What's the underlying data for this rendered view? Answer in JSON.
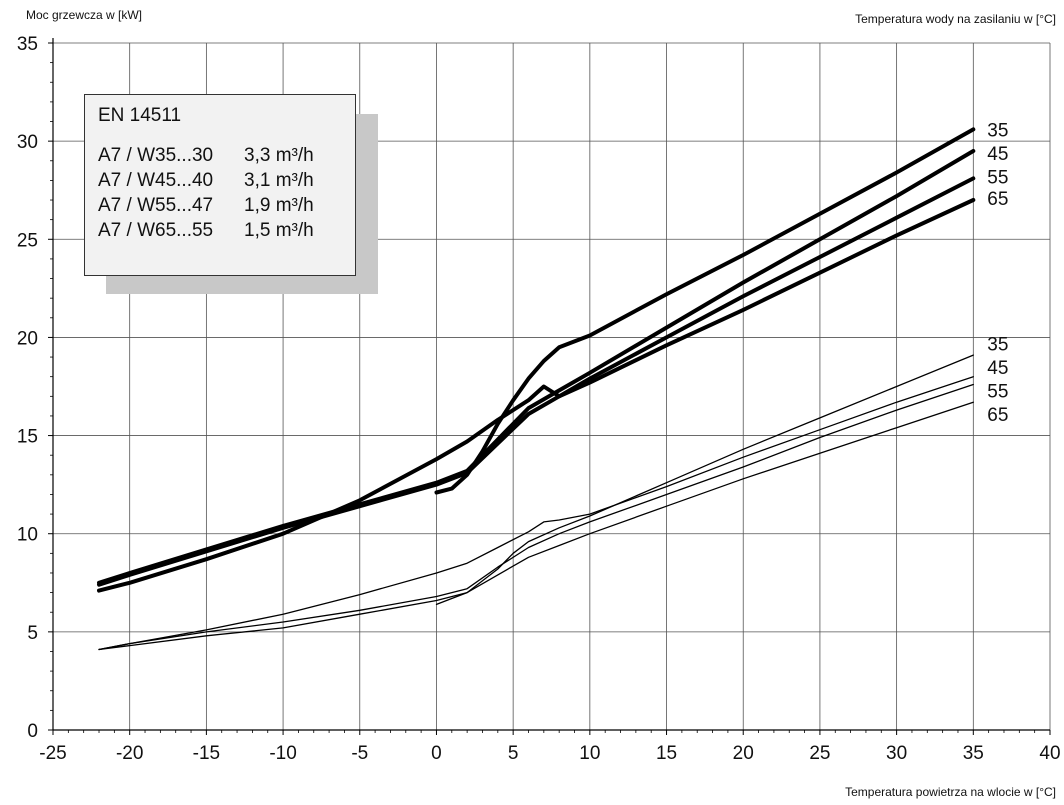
{
  "chart_data": {
    "type": "line",
    "ylabel": "Moc grzewcza w [kW]",
    "xlabel": "Temperatura powietrza na wlocie w [°C]",
    "right_title": "Temperatura wody na zasilaniu w [°C]",
    "xlim": [
      -25,
      40
    ],
    "ylim": [
      0,
      35
    ],
    "xticks": [
      -25,
      -20,
      -15,
      -10,
      -5,
      0,
      5,
      10,
      15,
      20,
      25,
      30,
      35,
      40
    ],
    "yticks": [
      0,
      5,
      10,
      15,
      20,
      25,
      30,
      35
    ],
    "grid": true,
    "legend": {
      "title": "EN 14511",
      "rows": [
        {
          "label": "A7 / W35...30",
          "value": "3,3 m³/h"
        },
        {
          "label": "A7 / W45...40",
          "value": "3,1 m³/h"
        },
        {
          "label": "A7 / W55...47",
          "value": "1,9 m³/h"
        },
        {
          "label": "A7 / W65...55",
          "value": "1,5 m³/h"
        }
      ]
    },
    "series": [
      {
        "group": "thick",
        "name": "35",
        "points": [
          [
            0,
            12.1
          ],
          [
            1,
            12.3
          ],
          [
            2,
            13.0
          ],
          [
            3,
            14.2
          ],
          [
            4,
            15.6
          ],
          [
            5,
            16.8
          ],
          [
            6,
            17.9
          ],
          [
            7,
            18.8
          ],
          [
            8,
            19.5
          ],
          [
            10,
            20.1
          ],
          [
            15,
            22.2
          ],
          [
            20,
            24.2
          ],
          [
            25,
            26.3
          ],
          [
            30,
            28.4
          ],
          [
            35,
            30.6
          ]
        ]
      },
      {
        "group": "thick",
        "name": "45",
        "points": [
          [
            -22,
            7.5
          ],
          [
            -20,
            8.0
          ],
          [
            -15,
            9.2
          ],
          [
            -10,
            10.4
          ],
          [
            -5,
            11.5
          ],
          [
            0,
            12.6
          ],
          [
            2,
            13.2
          ],
          [
            4,
            14.8
          ],
          [
            6,
            16.4
          ],
          [
            8,
            17.3
          ],
          [
            10,
            18.2
          ],
          [
            15,
            20.5
          ],
          [
            20,
            22.8
          ],
          [
            25,
            25.0
          ],
          [
            30,
            27.2
          ],
          [
            35,
            29.5
          ]
        ]
      },
      {
        "group": "thick",
        "name": "55",
        "points": [
          [
            -22,
            7.4
          ],
          [
            -20,
            7.9
          ],
          [
            -15,
            9.1
          ],
          [
            -10,
            10.3
          ],
          [
            -5,
            11.4
          ],
          [
            0,
            12.5
          ],
          [
            2,
            13.1
          ],
          [
            4,
            14.6
          ],
          [
            6,
            16.1
          ],
          [
            8,
            17.0
          ],
          [
            10,
            17.9
          ],
          [
            15,
            20.0
          ],
          [
            20,
            22.1
          ],
          [
            25,
            24.1
          ],
          [
            30,
            26.1
          ],
          [
            35,
            28.1
          ]
        ]
      },
      {
        "group": "thick",
        "name": "65",
        "points": [
          [
            -22,
            7.1
          ],
          [
            -20,
            7.5
          ],
          [
            -15,
            8.7
          ],
          [
            -10,
            10.0
          ],
          [
            -5,
            11.7
          ],
          [
            0,
            13.8
          ],
          [
            2,
            14.7
          ],
          [
            4,
            15.8
          ],
          [
            6,
            16.8
          ],
          [
            7,
            17.5
          ],
          [
            8,
            17.0
          ],
          [
            10,
            17.7
          ],
          [
            15,
            19.6
          ],
          [
            20,
            21.4
          ],
          [
            25,
            23.3
          ],
          [
            30,
            25.2
          ],
          [
            35,
            27.0
          ]
        ]
      },
      {
        "group": "thin",
        "name": "35",
        "points": [
          [
            0,
            6.4
          ],
          [
            2,
            7.0
          ],
          [
            4,
            8.2
          ],
          [
            5,
            9.0
          ],
          [
            6,
            9.6
          ],
          [
            8,
            10.3
          ],
          [
            10,
            10.9
          ],
          [
            15,
            12.6
          ],
          [
            20,
            14.3
          ],
          [
            25,
            15.9
          ],
          [
            30,
            17.5
          ],
          [
            35,
            19.1
          ]
        ]
      },
      {
        "group": "thin",
        "name": "45",
        "points": [
          [
            -22,
            4.1
          ],
          [
            -20,
            4.4
          ],
          [
            -15,
            5.0
          ],
          [
            -10,
            5.5
          ],
          [
            -5,
            6.1
          ],
          [
            0,
            6.8
          ],
          [
            2,
            7.2
          ],
          [
            4,
            8.3
          ],
          [
            6,
            9.3
          ],
          [
            8,
            10.0
          ],
          [
            10,
            10.6
          ],
          [
            15,
            12.0
          ],
          [
            20,
            13.4
          ],
          [
            25,
            14.9
          ],
          [
            30,
            16.3
          ],
          [
            35,
            17.6
          ]
        ]
      },
      {
        "group": "thin",
        "name": "55",
        "points": [
          [
            -22,
            4.1
          ],
          [
            -20,
            4.3
          ],
          [
            -15,
            4.8
          ],
          [
            -10,
            5.2
          ],
          [
            -5,
            5.9
          ],
          [
            0,
            6.6
          ],
          [
            2,
            7.0
          ],
          [
            4,
            7.9
          ],
          [
            6,
            8.8
          ],
          [
            8,
            9.4
          ],
          [
            10,
            10.0
          ],
          [
            15,
            11.4
          ],
          [
            20,
            12.8
          ],
          [
            25,
            14.1
          ],
          [
            30,
            15.4
          ],
          [
            35,
            16.7
          ]
        ]
      },
      {
        "group": "thin",
        "name": "65",
        "points": [
          [
            -22,
            4.1
          ],
          [
            -20,
            4.4
          ],
          [
            -15,
            5.1
          ],
          [
            -10,
            5.9
          ],
          [
            -5,
            6.9
          ],
          [
            0,
            8.0
          ],
          [
            2,
            8.5
          ],
          [
            4,
            9.3
          ],
          [
            6,
            10.1
          ],
          [
            7,
            10.6
          ],
          [
            8,
            10.7
          ],
          [
            10,
            11.0
          ],
          [
            15,
            12.4
          ],
          [
            20,
            13.9
          ],
          [
            25,
            15.3
          ],
          [
            30,
            16.7
          ],
          [
            35,
            18.0
          ]
        ]
      }
    ],
    "right_labels": {
      "thick": [
        {
          "text": "35",
          "y": 30.6
        },
        {
          "text": "45",
          "y": 29.4
        },
        {
          "text": "55",
          "y": 28.2
        },
        {
          "text": "65",
          "y": 27.1
        }
      ],
      "thin": [
        {
          "text": "35",
          "y": 19.7
        },
        {
          "text": "45",
          "y": 18.5
        },
        {
          "text": "55",
          "y": 17.3
        },
        {
          "text": "65",
          "y": 16.1
        }
      ]
    }
  }
}
